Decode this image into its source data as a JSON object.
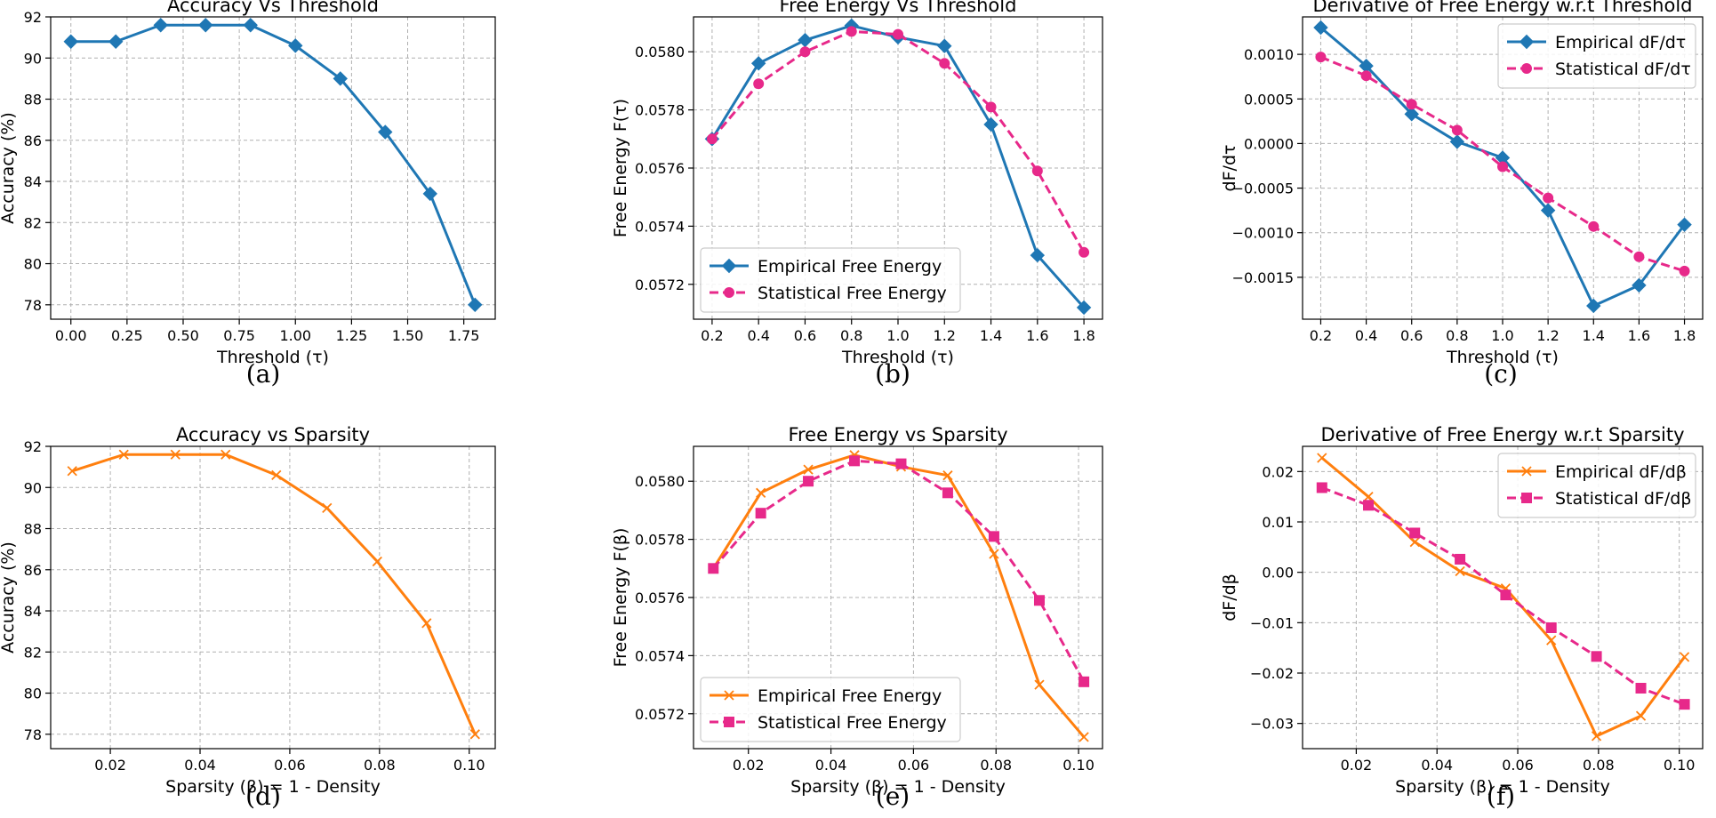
{
  "colors": {
    "blue": "#1f77b4",
    "orange": "#ff7f0e",
    "pink": "#e7298a",
    "grid": "#b0b0b0"
  },
  "chart_data": [
    {
      "id": "a",
      "type": "line",
      "caption": "(a)",
      "title": "Accuracy Vs Threshold",
      "xlabel": "Threshold (τ)",
      "ylabel": "Accuracy (%)",
      "xlim": [
        -0.09,
        1.89
      ],
      "ylim": [
        77.3,
        92.0
      ],
      "xticks": [
        0.0,
        0.25,
        0.5,
        0.75,
        1.0,
        1.25,
        1.5,
        1.75
      ],
      "xtick_labels": [
        "0.00",
        "0.25",
        "0.50",
        "0.75",
        "1.00",
        "1.25",
        "1.50",
        "1.75"
      ],
      "yticks": [
        78,
        80,
        82,
        84,
        86,
        88,
        90,
        92
      ],
      "ytick_labels": [
        "78",
        "80",
        "82",
        "84",
        "86",
        "88",
        "90",
        "92"
      ],
      "series": [
        {
          "name": "Accuracy",
          "color": "#1f77b4",
          "marker": "diamond",
          "dashed": false,
          "x": [
            0.0,
            0.2,
            0.4,
            0.6,
            0.8,
            1.0,
            1.2,
            1.4,
            1.6,
            1.8
          ],
          "values": [
            90.8,
            90.8,
            91.6,
            91.6,
            91.6,
            90.6,
            89.0,
            86.4,
            83.4,
            78.0
          ]
        }
      ]
    },
    {
      "id": "b",
      "type": "line",
      "caption": "(b)",
      "title": "Free Energy Vs Threshold",
      "xlabel": "Threshold (τ)",
      "ylabel": "Free Energy F(τ)",
      "xlim": [
        0.12,
        1.88
      ],
      "ylim": [
        0.05708,
        0.05812
      ],
      "xticks": [
        0.2,
        0.4,
        0.6,
        0.8,
        1.0,
        1.2,
        1.4,
        1.6,
        1.8
      ],
      "xtick_labels": [
        "0.2",
        "0.4",
        "0.6",
        "0.8",
        "1.0",
        "1.2",
        "1.4",
        "1.6",
        "1.8"
      ],
      "yticks": [
        0.0572,
        0.0574,
        0.0576,
        0.0578,
        0.058
      ],
      "ytick_labels": [
        "0.0572",
        "0.0574",
        "0.0576",
        "0.0578",
        "0.0580"
      ],
      "legend": "bottom-left",
      "series": [
        {
          "name": "Empirical Free Energy",
          "color": "#1f77b4",
          "marker": "diamond",
          "dashed": false,
          "x": [
            0.2,
            0.4,
            0.6,
            0.8,
            1.0,
            1.2,
            1.4,
            1.6,
            1.8
          ],
          "values": [
            0.0577,
            0.05796,
            0.05804,
            0.05809,
            0.05805,
            0.05802,
            0.05775,
            0.0573,
            0.05712
          ]
        },
        {
          "name": "Statistical Free Energy",
          "color": "#e7298a",
          "marker": "circle",
          "dashed": true,
          "x": [
            0.2,
            0.4,
            0.6,
            0.8,
            1.0,
            1.2,
            1.4,
            1.6,
            1.8
          ],
          "values": [
            0.0577,
            0.05789,
            0.058,
            0.05807,
            0.05806,
            0.05796,
            0.05781,
            0.05759,
            0.05731
          ]
        }
      ]
    },
    {
      "id": "c",
      "type": "line",
      "caption": "(c)",
      "title": "Derivative of Free Energy w.r.t Threshold",
      "xlabel": "Threshold (τ)",
      "ylabel": "dF/dτ",
      "xlim": [
        0.12,
        1.88
      ],
      "ylim": [
        -0.00197,
        0.00142
      ],
      "xticks": [
        0.2,
        0.4,
        0.6,
        0.8,
        1.0,
        1.2,
        1.4,
        1.6,
        1.8
      ],
      "xtick_labels": [
        "0.2",
        "0.4",
        "0.6",
        "0.8",
        "1.0",
        "1.2",
        "1.4",
        "1.6",
        "1.8"
      ],
      "yticks": [
        -0.0015,
        -0.001,
        -0.0005,
        0.0,
        0.0005,
        0.001
      ],
      "ytick_labels": [
        "−0.0015",
        "−0.0010",
        "−0.0005",
        "0.0000",
        "0.0005",
        "0.0010"
      ],
      "legend": "top-right",
      "series": [
        {
          "name": "Empirical dF/dτ",
          "color": "#1f77b4",
          "marker": "diamond",
          "dashed": false,
          "x": [
            0.2,
            0.4,
            0.6,
            0.8,
            1.0,
            1.2,
            1.4,
            1.6,
            1.8
          ],
          "values": [
            0.0013,
            0.00087,
            0.00033,
            2e-05,
            -0.00016,
            -0.00075,
            -0.00182,
            -0.00159,
            -0.00091
          ]
        },
        {
          "name": "Statistical dF/dτ",
          "color": "#e7298a",
          "marker": "circle",
          "dashed": true,
          "x": [
            0.2,
            0.4,
            0.6,
            0.8,
            1.0,
            1.2,
            1.4,
            1.6,
            1.8
          ],
          "values": [
            0.00097,
            0.00076,
            0.00044,
            0.00015,
            -0.00026,
            -0.00061,
            -0.00093,
            -0.00127,
            -0.00143
          ]
        }
      ]
    },
    {
      "id": "d",
      "type": "line",
      "caption": "(d)",
      "title": "Accuracy vs Sparsity",
      "xlabel": "Sparsity (β) = 1 - Density",
      "ylabel": "Accuracy (%)",
      "xlim": [
        0.0067,
        0.1058
      ],
      "ylim": [
        77.3,
        92.0
      ],
      "xticks": [
        0.02,
        0.04,
        0.06,
        0.08,
        0.1
      ],
      "xtick_labels": [
        "0.02",
        "0.04",
        "0.06",
        "0.08",
        "0.10"
      ],
      "yticks": [
        78,
        80,
        82,
        84,
        86,
        88,
        90,
        92
      ],
      "ytick_labels": [
        "78",
        "80",
        "82",
        "84",
        "86",
        "88",
        "90",
        "92"
      ],
      "series": [
        {
          "name": "Accuracy",
          "color": "#ff7f0e",
          "marker": "x",
          "dashed": false,
          "x": [
            0.0115,
            0.023,
            0.0345,
            0.0457,
            0.057,
            0.0683,
            0.0795,
            0.0905,
            0.1013
          ],
          "values": [
            90.8,
            91.6,
            91.6,
            91.6,
            90.6,
            89.0,
            86.4,
            83.4,
            78.0
          ]
        }
      ]
    },
    {
      "id": "e",
      "type": "line",
      "caption": "(e)",
      "title": "Free Energy vs Sparsity",
      "xlabel": "Sparsity (β) = 1 - Density",
      "ylabel": "Free Energy F(β)",
      "xlim": [
        0.0067,
        0.1058
      ],
      "ylim": [
        0.05708,
        0.05812
      ],
      "xticks": [
        0.02,
        0.04,
        0.06,
        0.08,
        0.1
      ],
      "xtick_labels": [
        "0.02",
        "0.04",
        "0.06",
        "0.08",
        "0.10"
      ],
      "yticks": [
        0.0572,
        0.0574,
        0.0576,
        0.0578,
        0.058
      ],
      "ytick_labels": [
        "0.0572",
        "0.0574",
        "0.0576",
        "0.0578",
        "0.0580"
      ],
      "legend": "bottom-left",
      "series": [
        {
          "name": "Empirical Free Energy",
          "color": "#ff7f0e",
          "marker": "x",
          "dashed": false,
          "x": [
            0.0115,
            0.023,
            0.0345,
            0.0457,
            0.057,
            0.0683,
            0.0795,
            0.0905,
            0.1013
          ],
          "values": [
            0.0577,
            0.05796,
            0.05804,
            0.05809,
            0.05805,
            0.05802,
            0.05775,
            0.0573,
            0.05712
          ]
        },
        {
          "name": "Statistical Free Energy",
          "color": "#e7298a",
          "marker": "square",
          "dashed": true,
          "x": [
            0.0115,
            0.023,
            0.0345,
            0.0457,
            0.057,
            0.0683,
            0.0795,
            0.0905,
            0.1013
          ],
          "values": [
            0.0577,
            0.05789,
            0.058,
            0.05807,
            0.05806,
            0.05796,
            0.05781,
            0.05759,
            0.05731
          ]
        }
      ]
    },
    {
      "id": "f",
      "type": "line",
      "caption": "(f)",
      "title": "Derivative of Free Energy w.r.t Sparsity",
      "xlabel": "Sparsity (β) = 1 - Density",
      "ylabel": "dF/dβ",
      "xlim": [
        0.0067,
        0.1058
      ],
      "ylim": [
        -0.035,
        0.025
      ],
      "xticks": [
        0.02,
        0.04,
        0.06,
        0.08,
        0.1
      ],
      "xtick_labels": [
        "0.02",
        "0.04",
        "0.06",
        "0.08",
        "0.10"
      ],
      "yticks": [
        -0.03,
        -0.02,
        -0.01,
        0.0,
        0.01,
        0.02
      ],
      "ytick_labels": [
        "−0.03",
        "−0.02",
        "−0.01",
        "0.00",
        "0.01",
        "0.02"
      ],
      "legend": "top-right",
      "series": [
        {
          "name": "Empirical dF/dβ",
          "color": "#ff7f0e",
          "marker": "x",
          "dashed": false,
          "x": [
            0.0115,
            0.023,
            0.0345,
            0.0457,
            0.057,
            0.0683,
            0.0795,
            0.0905,
            0.1013
          ],
          "values": [
            0.0227,
            0.015,
            0.006,
            0.0002,
            -0.0032,
            -0.0135,
            -0.0325,
            -0.0285,
            -0.0168
          ]
        },
        {
          "name": "Statistical dF/dβ",
          "color": "#e7298a",
          "marker": "square",
          "dashed": true,
          "x": [
            0.0115,
            0.023,
            0.0345,
            0.0457,
            0.057,
            0.0683,
            0.0795,
            0.0905,
            0.1013
          ],
          "values": [
            0.0168,
            0.0133,
            0.0078,
            0.0026,
            -0.0045,
            -0.011,
            -0.0167,
            -0.023,
            -0.0262
          ]
        }
      ]
    }
  ]
}
